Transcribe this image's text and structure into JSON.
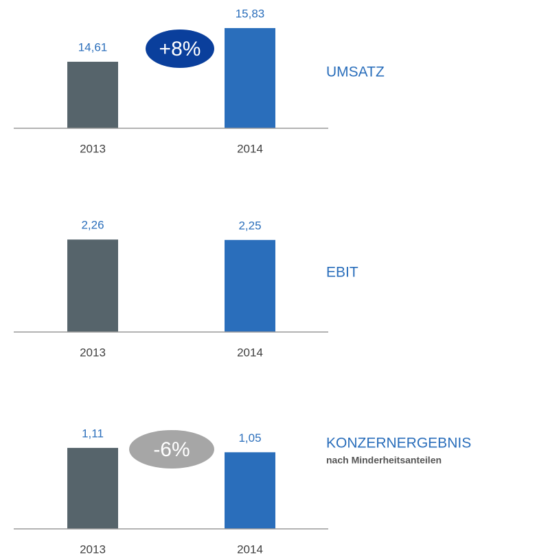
{
  "chart_data": [
    {
      "type": "bar",
      "title": "UMSATZ",
      "categories": [
        "2013",
        "2014"
      ],
      "values": [
        14.61,
        15.83
      ],
      "value_labels": [
        "14,61",
        "15,83"
      ],
      "colors": [
        "#56646b",
        "#2a6ebb"
      ],
      "ylim": [
        12.2,
        16.35
      ],
      "annotation": {
        "text": "+8%",
        "color": "#0a3f9c"
      }
    },
    {
      "type": "bar",
      "title": "EBIT",
      "categories": [
        "2013",
        "2014"
      ],
      "values": [
        2.26,
        2.25
      ],
      "value_labels": [
        "2,26",
        "2,25"
      ],
      "colors": [
        "#56646b",
        "#2a6ebb"
      ],
      "ylim": [
        0,
        2.8
      ]
    },
    {
      "type": "bar",
      "title": "KONZERNERGEBNIS",
      "subtitle": "nach Minderheitsanteilen",
      "categories": [
        "2013",
        "2014"
      ],
      "values": [
        1.11,
        1.05
      ],
      "value_labels": [
        "1,11",
        "1,05"
      ],
      "colors": [
        "#56646b",
        "#2a6ebb"
      ],
      "ylim": [
        0,
        1.57
      ],
      "annotation": {
        "text": "-6%",
        "color": "#a6a6a6"
      }
    }
  ]
}
